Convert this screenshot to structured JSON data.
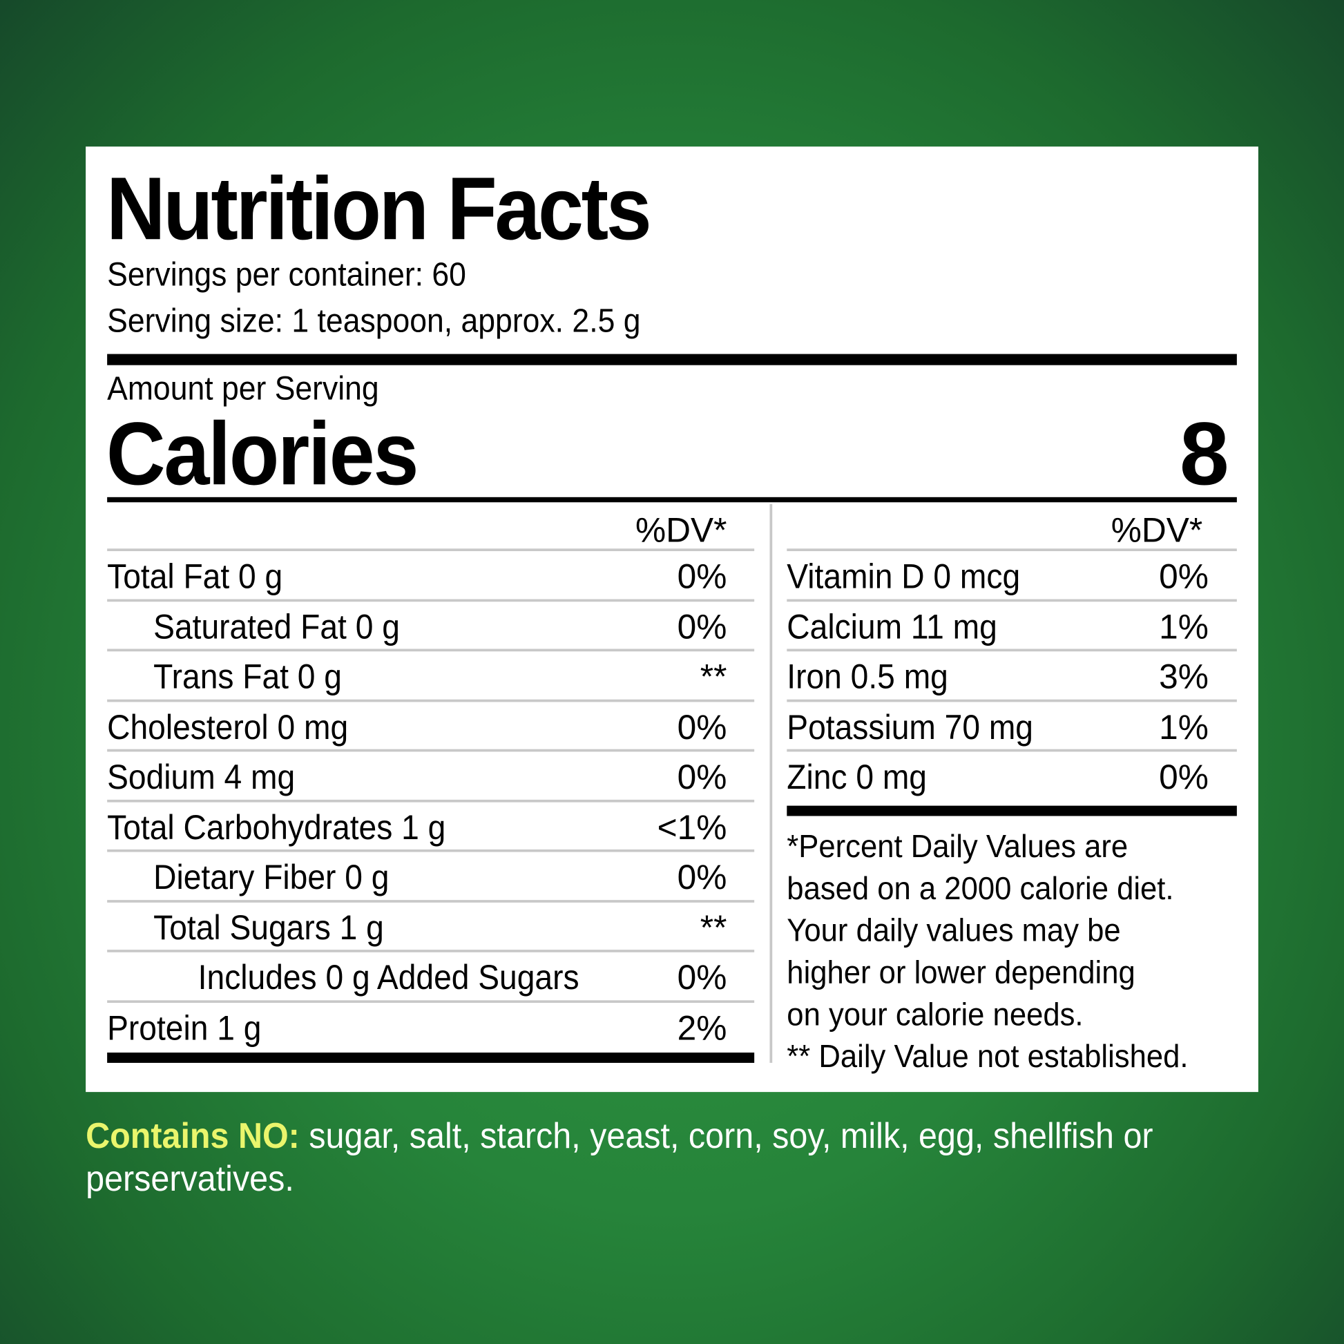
{
  "title": "Nutrition Facts",
  "servings_per_container": "Servings per container: 60",
  "serving_size": "Serving size: 1 teaspoon, approx. 2.5 g",
  "amount_per_serving": "Amount per Serving",
  "calories_label": "Calories",
  "calories_value": "8",
  "dv_header": "%DV*",
  "left_rows": [
    {
      "label": "Total Fat 0 g",
      "dv": "0%",
      "indent": 0
    },
    {
      "label": "Saturated Fat 0 g",
      "dv": "0%",
      "indent": 1
    },
    {
      "label": "Trans Fat 0 g",
      "dv": "**",
      "indent": 1
    },
    {
      "label": "Cholesterol 0 mg",
      "dv": "0%",
      "indent": 0
    },
    {
      "label": "Sodium 4 mg",
      "dv": "0%",
      "indent": 0
    },
    {
      "label": "Total Carbohydrates 1 g",
      "dv": "<1%",
      "indent": 0
    },
    {
      "label": "Dietary Fiber 0 g",
      "dv": "0%",
      "indent": 1
    },
    {
      "label": "Total Sugars 1 g",
      "dv": "**",
      "indent": 1
    },
    {
      "label": "Includes 0 g Added Sugars",
      "dv": "0%",
      "indent": 2
    },
    {
      "label": "Protein 1 g",
      "dv": "2%",
      "indent": 0
    }
  ],
  "right_rows": [
    {
      "label": "Vitamin D 0 mcg",
      "dv": "0%"
    },
    {
      "label": "Calcium 11 mg",
      "dv": "1%"
    },
    {
      "label": "Iron 0.5 mg",
      "dv": "3%"
    },
    {
      "label": "Potassium 70 mg",
      "dv": "1%"
    },
    {
      "label": "Zinc 0 mg",
      "dv": "0%"
    }
  ],
  "footnote": [
    "*Percent Daily Values are",
    "based on a 2000 calorie diet.",
    "Your daily values may be",
    "higher or lower depending",
    "on your calorie needs.",
    "** Daily Value not established."
  ],
  "contains": {
    "label": "Contains NO:",
    "text": " sugar, salt, starch, yeast, corn, soy, milk, egg, shellfish or perservatives."
  },
  "colors": {
    "background": "#26843a",
    "card": "#ffffff",
    "contains_label": "#eaf56c"
  }
}
